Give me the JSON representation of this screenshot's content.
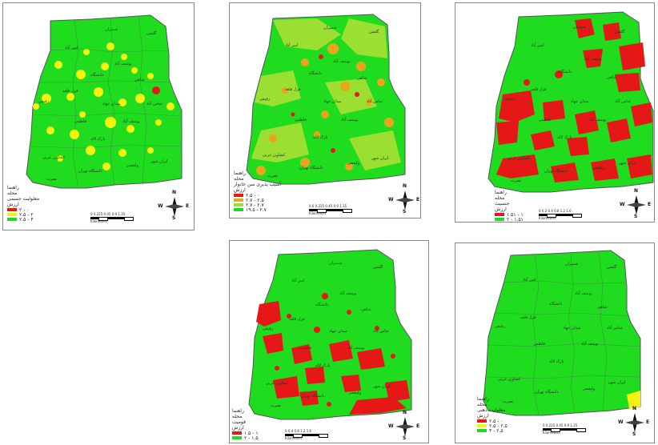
{
  "colors": {
    "green": "#1fdc1f",
    "red": "#e51717",
    "yellow": "#f3f312",
    "orange": "#e9a51c",
    "lightgreen": "#9bdf33",
    "frame": "#8a8a8a",
    "border": "#555555"
  },
  "compass": {
    "n": "N",
    "s": "S",
    "e": "E",
    "w": "W"
  },
  "maps": [
    {
      "legend": {
        "title": "راهنما",
        "layer": "محله",
        "variable": "معلولیت جسمی",
        "sub": "ارزش",
        "classes": [
          {
            "label": "۲ - ۰",
            "color": "#e51717"
          },
          {
            "label": "۲.۵ - ۲",
            "color": "#f3f312"
          },
          {
            "label": "۲.۵ - ۴",
            "color": "#1fdc1f"
          }
        ]
      },
      "scale": {
        "ticks": "0 0.225 0.45   0.9   1.35",
        "unit": "Kilometers"
      },
      "labels": [
        "شمیران",
        "گلشن",
        "امیر آباد",
        "یوسف آباد",
        "دانشگاه",
        "شاهی",
        "قزل قلعه",
        "میدان جهاد",
        "رفیقی",
        "عباس آباد",
        "فاطمی",
        "یوسف آباد",
        "پارک لاله",
        "ایران شهر",
        "کشاورز غربی",
        "دانشگاه تهران",
        "ولیعصر",
        "نصرت"
      ]
    },
    {
      "legend": {
        "title": "راهنما",
        "layer": "محله",
        "variable": "آسیب پذیری سن خانوار",
        "sub": "ارزش",
        "classes": [
          {
            "label": "۲.۵ - ۰",
            "color": "#e51717"
          },
          {
            "label": "۲.۷ - ۲.۵",
            "color": "#e9a51c"
          },
          {
            "label": "۲.۷ - ۲.۷",
            "color": "#9bdf33"
          },
          {
            "label": "۱۹.۵ - ۲.۷",
            "color": "#1fdc1f"
          }
        ]
      },
      "scale": {
        "ticks": "0.0 0.225 0.45   0.9   1.35",
        "unit": "Kilometers"
      },
      "labels": [
        "شمیران",
        "گلشن",
        "امیر آباد",
        "یوسف آباد",
        "دانشگاه",
        "شاهی",
        "قزل قلعه",
        "میدان جهاد",
        "رفیقی",
        "عباس آباد",
        "فاطمی",
        "یوسف آباد",
        "پارک لاله",
        "ایران شهر",
        "کشاورز غربی",
        "دانشگاه تهران",
        "ولیعصر",
        "نصرت"
      ]
    },
    {
      "legend": {
        "title": "راهنما",
        "layer": "محله",
        "variable": "جنسیت",
        "sub": "ارزش",
        "classes": [
          {
            "label": "۱.۵۱ - ۱",
            "color": "#e51717"
          },
          {
            "label": "۲ - ۱.۵۱",
            "color": "#1fdc1f"
          }
        ]
      },
      "scale": {
        "ticks": "0  0.2 0.4   0.8   1.2   1.6",
        "unit": "Kilometers"
      },
      "labels": [
        "شمیران",
        "گلشن",
        "امیر آباد",
        "یوسف آباد",
        "دانشگاه",
        "شاهی",
        "قزل قلعه",
        "میدان جهاد",
        "رفیقی",
        "عباس آباد",
        "فاطمی",
        "یوسف آباد",
        "پارک لاله",
        "ایران شهر",
        "کشاورز غربی",
        "دانشگاه تهران",
        "ولیعصر",
        "نصرت"
      ]
    },
    {
      "legend": {
        "title": "راهنما",
        "layer": "محله",
        "variable": "قومیت",
        "sub": "ارزش",
        "classes": [
          {
            "label": "۱.۵ - ۱",
            "color": "#e51717"
          },
          {
            "label": "۲ - ۱.۵",
            "color": "#1fdc1f"
          }
        ]
      },
      "scale": {
        "ticks": "0   0.4  0.8   1.2   1.6",
        "unit": "Kilometers"
      },
      "labels": [
        "شمیران",
        "گلشن",
        "امیر آباد",
        "یوسف آباد",
        "دانشگاه",
        "شاهی",
        "قزل قلعه",
        "میدان جهاد",
        "رفیقی",
        "عباس آباد",
        "فاطمی",
        "یوسف آباد",
        "پارک لاله",
        "ایران شهر",
        "کشاورز غربی",
        "دانشگاه تهران",
        "ولیعصر",
        "نصرت"
      ]
    },
    {
      "legend": {
        "title": "راهنما",
        "layer": "محله",
        "variable": "معلولیت ذهنی",
        "sub": "ارزش",
        "classes": [
          {
            "label": "۲.۵ - ۰",
            "color": "#e51717"
          },
          {
            "label": "۲.۵ - ۲.۵",
            "color": "#f3f312"
          },
          {
            "label": "۴ - ۲.۵",
            "color": "#1fdc1f"
          }
        ]
      },
      "scale": {
        "ticks": "0 0.225 0.45   0.9   1.35",
        "unit": "Kilometers"
      },
      "labels": [
        "شمیران",
        "گلشن",
        "امیر آباد",
        "یوسف آباد",
        "دانشگاه",
        "شاهی",
        "قزل قلعه",
        "میدان جهاد",
        "رفیقی",
        "عباس آباد",
        "فاطمی",
        "یوسف آباد",
        "پارک لاله",
        "ایران شهر",
        "کشاورز غربی",
        "دانشگاه تهران",
        "ولیعصر",
        "نصرت"
      ]
    }
  ]
}
